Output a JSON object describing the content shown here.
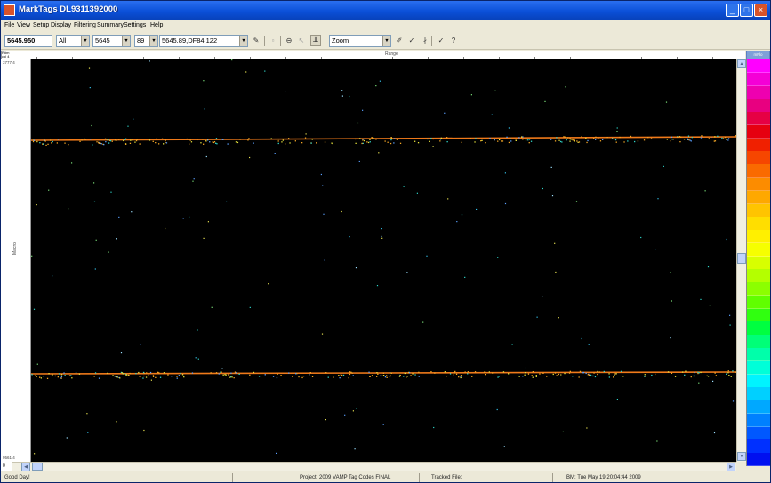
{
  "window": {
    "title": "MarkTags  DL9311392000"
  },
  "menu": [
    "File",
    "View",
    "Setup",
    "Display",
    "Filtering",
    "Summary",
    "Settings",
    "Help"
  ],
  "toolbar": {
    "position_value": "5645.950",
    "filter_value": "All",
    "tag_value": "5645",
    "code_value": "89",
    "tag_id_value": "5645.89,DF84,122",
    "zoom_value": "Zoom"
  },
  "plot": {
    "top_axis_title": "Range",
    "left_axis_title": "Macro",
    "corner_top_label": "R#m\ncol 4",
    "left_top_label": "3777.4",
    "left_bottom_label": "9561.4",
    "corner_zero": "0"
  },
  "legend": {
    "header": "mFlo",
    "colors": [
      "#ff00ff",
      "#f400d6",
      "#ee00b0",
      "#e80080",
      "#e60044",
      "#e60010",
      "#f02000",
      "#f64600",
      "#fa6a00",
      "#fc8c00",
      "#fea800",
      "#ffc400",
      "#ffde00",
      "#fff000",
      "#f6ff00",
      "#d8ff00",
      "#b4ff00",
      "#8cff00",
      "#60ff00",
      "#30ff10",
      "#00ff40",
      "#00ff78",
      "#00ffaa",
      "#00ffd8",
      "#00f4ff",
      "#00d0ff",
      "#00a8ff",
      "#0080ff",
      "#0058ff",
      "#0030ff",
      "#0010f0"
    ]
  },
  "status": {
    "greeting": "Good Day!",
    "project": "Project: 2009 VAMP Tag Codes FINAL",
    "tracked": "Tracked File:",
    "bm": "BM: Tue May 19 20:04:44 2009"
  }
}
